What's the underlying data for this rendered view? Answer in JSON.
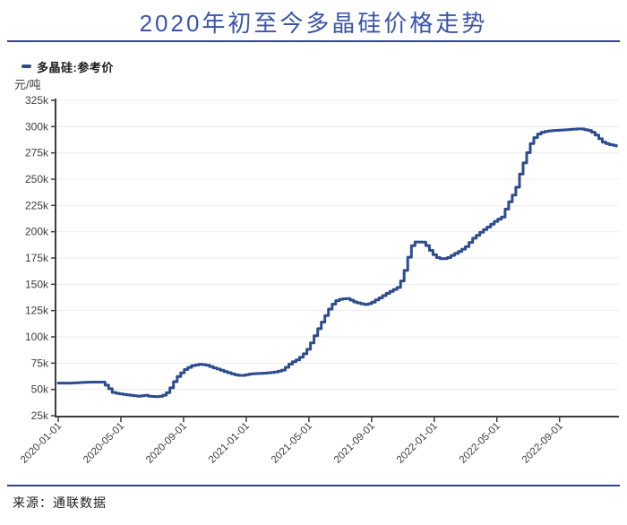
{
  "header": {
    "title": "2020年初至今多晶硅价格走势"
  },
  "legend": {
    "series_label": "多晶硅:参考价"
  },
  "source": {
    "label": "来源：通联数据"
  },
  "colors": {
    "title_blue": "#3b55a8",
    "divider_blue": "#2e4399",
    "line_blue": "#2d4c8e",
    "axis_dark": "#3d3d3d",
    "grid_gray": "#ebebeb",
    "tick_text": "#3d3d3d"
  },
  "chart_data": {
    "type": "line",
    "title": "2020年初至今多晶硅价格走势",
    "series_name": "多晶硅:参考价",
    "ylabel": "元/吨",
    "ylim": [
      25000,
      325000
    ],
    "y_tick_step": 25000,
    "y_ticks": [
      {
        "label": "25k",
        "value": 25000
      },
      {
        "label": "50k",
        "value": 50000
      },
      {
        "label": "75k",
        "value": 75000
      },
      {
        "label": "100k",
        "value": 100000
      },
      {
        "label": "125k",
        "value": 125000
      },
      {
        "label": "150k",
        "value": 150000
      },
      {
        "label": "175k",
        "value": 175000
      },
      {
        "label": "200k",
        "value": 200000
      },
      {
        "label": "225k",
        "value": 225000
      },
      {
        "label": "250k",
        "value": 250000
      },
      {
        "label": "275k",
        "value": 275000
      },
      {
        "label": "300k",
        "value": 300000
      },
      {
        "label": "325k",
        "value": 325000
      }
    ],
    "x_ticks": [
      "2020-01-01",
      "2020-05-01",
      "2020-09-01",
      "2021-01-01",
      "2021-05-01",
      "2021-09-01",
      "2022-01-01",
      "2022-05-01",
      "2022-09-01"
    ],
    "x_range": [
      "2020-01-01",
      "2022-12-25"
    ],
    "grid": true,
    "legend_position": "top-left",
    "points": [
      [
        "2020-01-01",
        56000
      ],
      [
        "2020-01-20",
        56000
      ],
      [
        "2020-02-10",
        56500
      ],
      [
        "2020-03-01",
        57000
      ],
      [
        "2020-03-25",
        57000
      ],
      [
        "2020-04-05",
        52000
      ],
      [
        "2020-04-15",
        47000
      ],
      [
        "2020-04-25",
        46000
      ],
      [
        "2020-05-10",
        45000
      ],
      [
        "2020-05-25",
        44000
      ],
      [
        "2020-06-05",
        43500
      ],
      [
        "2020-06-15",
        44500
      ],
      [
        "2020-06-25",
        43500
      ],
      [
        "2020-07-10",
        43000
      ],
      [
        "2020-07-20",
        44000
      ],
      [
        "2020-08-01",
        48000
      ],
      [
        "2020-08-10",
        56000
      ],
      [
        "2020-08-20",
        63000
      ],
      [
        "2020-09-01",
        68500
      ],
      [
        "2020-09-15",
        72500
      ],
      [
        "2020-10-01",
        74000
      ],
      [
        "2020-10-15",
        73000
      ],
      [
        "2020-10-25",
        71000
      ],
      [
        "2020-11-10",
        68500
      ],
      [
        "2020-11-25",
        66000
      ],
      [
        "2020-12-08",
        64000
      ],
      [
        "2020-12-20",
        63000
      ],
      [
        "2021-01-05",
        64500
      ],
      [
        "2021-01-15",
        65000
      ],
      [
        "2021-02-05",
        65500
      ],
      [
        "2021-02-25",
        66500
      ],
      [
        "2021-03-10",
        68500
      ],
      [
        "2021-03-25",
        75000
      ],
      [
        "2021-04-10",
        79000
      ],
      [
        "2021-04-25",
        86000
      ],
      [
        "2021-05-05",
        95000
      ],
      [
        "2021-05-15",
        105000
      ],
      [
        "2021-05-25",
        114000
      ],
      [
        "2021-06-08",
        126000
      ],
      [
        "2021-06-20",
        134000
      ],
      [
        "2021-07-01",
        136000
      ],
      [
        "2021-07-15",
        136500
      ],
      [
        "2021-07-25",
        133500
      ],
      [
        "2021-08-10",
        131500
      ],
      [
        "2021-08-20",
        130500
      ],
      [
        "2021-09-01",
        133000
      ],
      [
        "2021-09-15",
        137000
      ],
      [
        "2021-10-01",
        142000
      ],
      [
        "2021-10-20",
        147000
      ],
      [
        "2021-10-30",
        156000
      ],
      [
        "2021-11-05",
        166000
      ],
      [
        "2021-11-10",
        175000
      ],
      [
        "2021-11-16",
        186000
      ],
      [
        "2021-11-25",
        190500
      ],
      [
        "2021-12-10",
        190000
      ],
      [
        "2021-12-18",
        185000
      ],
      [
        "2021-12-26",
        179500
      ],
      [
        "2022-01-05",
        175500
      ],
      [
        "2022-01-15",
        174000
      ],
      [
        "2022-01-25",
        175000
      ],
      [
        "2022-02-05",
        178000
      ],
      [
        "2022-02-20",
        182000
      ],
      [
        "2022-03-01",
        186000
      ],
      [
        "2022-03-15",
        194000
      ],
      [
        "2022-03-30",
        200000
      ],
      [
        "2022-04-15",
        205500
      ],
      [
        "2022-04-28",
        210500
      ],
      [
        "2022-05-10",
        214000
      ],
      [
        "2022-05-20",
        225000
      ],
      [
        "2022-05-30",
        234000
      ],
      [
        "2022-06-08",
        243000
      ],
      [
        "2022-06-15",
        256000
      ],
      [
        "2022-06-25",
        271000
      ],
      [
        "2022-07-05",
        284000
      ],
      [
        "2022-07-15",
        292000
      ],
      [
        "2022-07-28",
        295000
      ],
      [
        "2022-08-10",
        296000
      ],
      [
        "2022-08-25",
        296500
      ],
      [
        "2022-09-10",
        297000
      ],
      [
        "2022-09-25",
        297500
      ],
      [
        "2022-10-10",
        298000
      ],
      [
        "2022-10-25",
        296500
      ],
      [
        "2022-11-05",
        294000
      ],
      [
        "2022-11-15",
        289000
      ],
      [
        "2022-11-25",
        284500
      ],
      [
        "2022-12-05",
        283000
      ],
      [
        "2022-12-20",
        281500
      ]
    ]
  }
}
